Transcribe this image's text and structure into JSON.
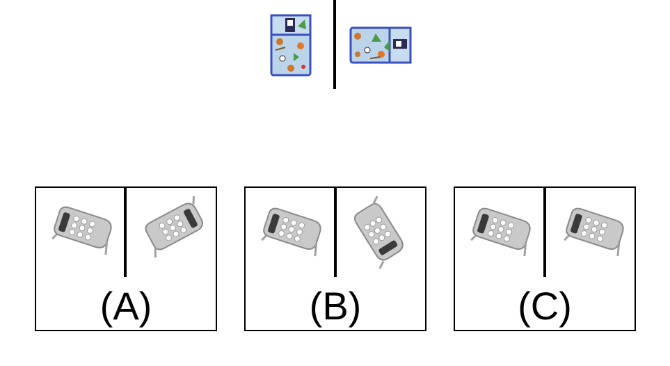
{
  "reference": {
    "left_image": "lunch-bag-upright-icon",
    "right_image": "lunch-bag-rotated-icon"
  },
  "options": [
    {
      "label": "(A)",
      "left_image": "ring-tray-icon",
      "right_image": "ring-tray-rotated-icon"
    },
    {
      "label": "(B)",
      "left_image": "ring-tray-icon",
      "right_image": "ring-tray-rotated-icon"
    },
    {
      "label": "(C)",
      "left_image": "ring-tray-icon",
      "right_image": "ring-tray-rotated-icon"
    }
  ],
  "colors": {
    "bag_fill": "#bcd4ea",
    "bag_trim": "#3a4fc0",
    "tray_fill": "#c9c9c9",
    "tray_dark": "#3a3a3a"
  }
}
